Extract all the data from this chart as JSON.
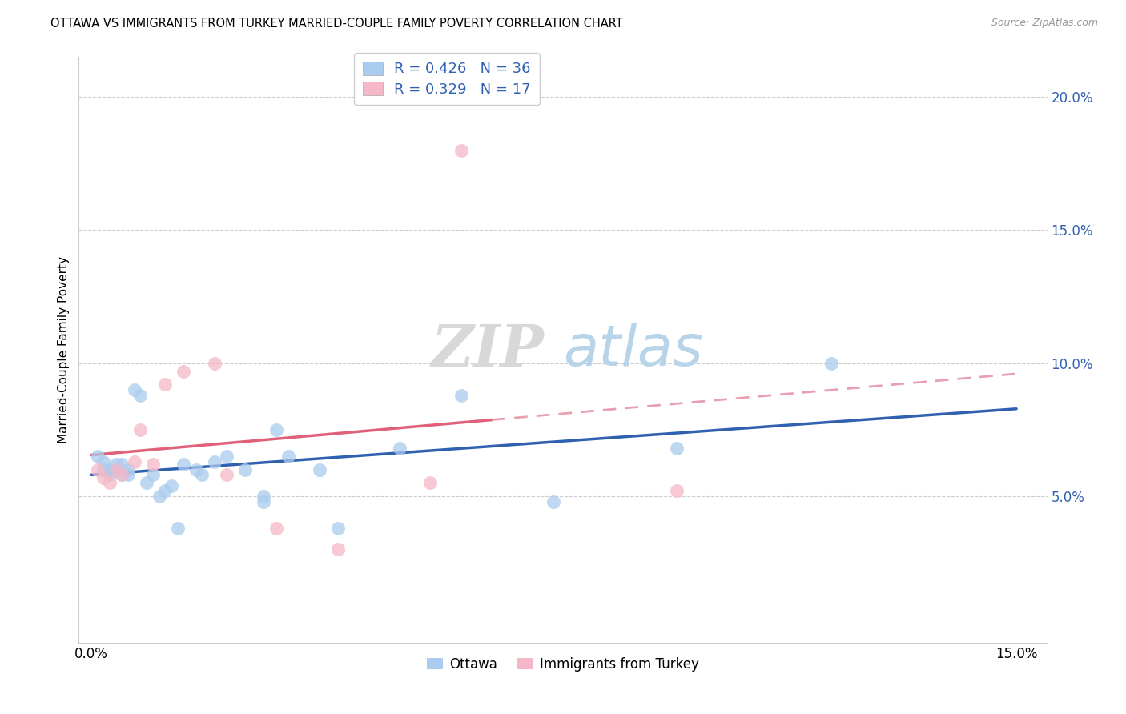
{
  "title": "OTTAWA VS IMMIGRANTS FROM TURKEY MARRIED-COUPLE FAMILY POVERTY CORRELATION CHART",
  "source": "Source: ZipAtlas.com",
  "ylabel": "Married-Couple Family Poverty",
  "xlim": [
    -0.002,
    0.155
  ],
  "ylim": [
    -0.005,
    0.215
  ],
  "xticks": [
    0.0,
    0.03,
    0.06,
    0.09,
    0.12,
    0.15
  ],
  "xticklabels": [
    "0.0%",
    "",
    "",
    "",
    "",
    "15.0%"
  ],
  "yticks_right": [
    0.05,
    0.1,
    0.15,
    0.2
  ],
  "ytick_right_labels": [
    "5.0%",
    "10.0%",
    "15.0%",
    "20.0%"
  ],
  "legend_r1": "R = 0.426",
  "legend_n1": "N = 36",
  "legend_r2": "R = 0.329",
  "legend_n2": "N = 17",
  "legend_bottom1": "Ottawa",
  "legend_bottom2": "Immigrants from Turkey",
  "ottawa_color": "#aaccee",
  "turkey_color": "#f5b8c8",
  "ottawa_line_color": "#3060b0",
  "turkey_line_color": "#e0607a",
  "turkey_dash_color": "#e8a0b0",
  "watermark_zip": "ZIP",
  "watermark_atlas": "atlas",
  "ottawa_x": [
    0.001,
    0.002,
    0.002,
    0.003,
    0.003,
    0.004,
    0.004,
    0.005,
    0.005,
    0.006,
    0.006,
    0.007,
    0.008,
    0.009,
    0.01,
    0.011,
    0.012,
    0.013,
    0.014,
    0.015,
    0.017,
    0.018,
    0.02,
    0.022,
    0.025,
    0.028,
    0.028,
    0.03,
    0.032,
    0.037,
    0.04,
    0.05,
    0.06,
    0.075,
    0.095,
    0.12
  ],
  "ottawa_y": [
    0.065,
    0.06,
    0.063,
    0.06,
    0.058,
    0.06,
    0.062,
    0.062,
    0.058,
    0.06,
    0.058,
    0.09,
    0.088,
    0.055,
    0.058,
    0.05,
    0.052,
    0.054,
    0.038,
    0.062,
    0.06,
    0.058,
    0.063,
    0.065,
    0.06,
    0.05,
    0.048,
    0.075,
    0.065,
    0.06,
    0.038,
    0.068,
    0.088,
    0.048,
    0.068,
    0.1
  ],
  "turkey_x": [
    0.001,
    0.002,
    0.003,
    0.004,
    0.005,
    0.007,
    0.008,
    0.01,
    0.012,
    0.015,
    0.02,
    0.022,
    0.03,
    0.04,
    0.055,
    0.06,
    0.095
  ],
  "turkey_y": [
    0.06,
    0.057,
    0.055,
    0.06,
    0.058,
    0.063,
    0.075,
    0.062,
    0.092,
    0.097,
    0.1,
    0.058,
    0.038,
    0.03,
    0.055,
    0.18,
    0.052
  ]
}
